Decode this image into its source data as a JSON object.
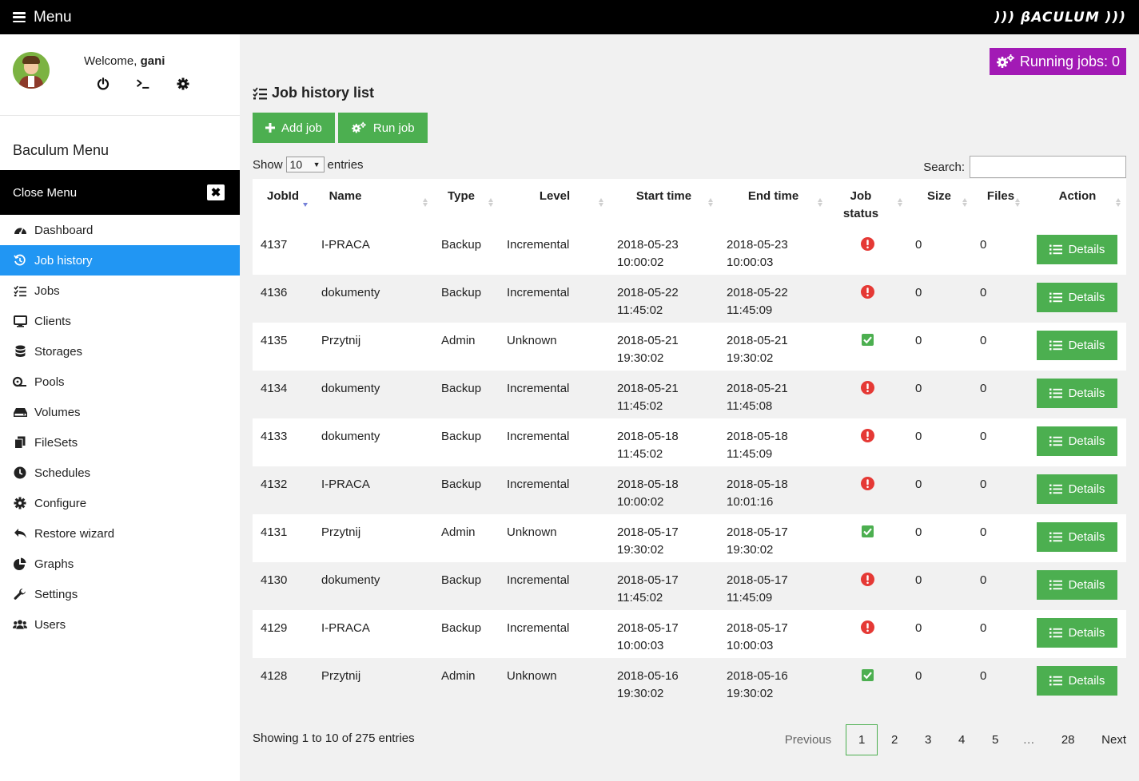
{
  "topbar": {
    "menu_label": "Menu",
    "brand": "))) βACULUM )))"
  },
  "user": {
    "welcome_prefix": "Welcome, ",
    "name": "gani"
  },
  "sidebar": {
    "title": "Baculum Menu",
    "close_label": "Close Menu",
    "items": [
      {
        "label": "Dashboard",
        "icon": "dashboard-icon"
      },
      {
        "label": "Job history",
        "icon": "history-icon",
        "active": true
      },
      {
        "label": "Jobs",
        "icon": "tasks-icon"
      },
      {
        "label": "Clients",
        "icon": "desktop-icon"
      },
      {
        "label": "Storages",
        "icon": "database-icon"
      },
      {
        "label": "Pools",
        "icon": "tape-icon"
      },
      {
        "label": "Volumes",
        "icon": "hdd-icon"
      },
      {
        "label": "FileSets",
        "icon": "copy-icon"
      },
      {
        "label": "Schedules",
        "icon": "clock-icon"
      },
      {
        "label": "Configure",
        "icon": "gear-icon"
      },
      {
        "label": "Restore wizard",
        "icon": "reply-icon"
      },
      {
        "label": "Graphs",
        "icon": "pie-chart-icon"
      },
      {
        "label": "Settings",
        "icon": "wrench-icon"
      },
      {
        "label": "Users",
        "icon": "users-icon"
      }
    ]
  },
  "main": {
    "running_jobs": "Running jobs: 0",
    "title": "Job history list",
    "add_job": "Add job",
    "run_job": "Run job",
    "show_label": "Show",
    "entries_value": "10",
    "entries_label": "entries",
    "search_label": "Search:",
    "search_value": ""
  },
  "table": {
    "columns": [
      "JobId",
      "Name",
      "Type",
      "Level",
      "Start time",
      "End time",
      "Job status",
      "Size",
      "Files",
      "Action"
    ],
    "details_label": "Details",
    "rows": [
      {
        "jobid": "4137",
        "name": "I-PRACA",
        "type": "Backup",
        "level": "Incremental",
        "start_date": "2018-05-23",
        "start_time": "10:00:02",
        "end_date": "2018-05-23",
        "end_time": "10:00:03",
        "status": "error",
        "size": "0",
        "files": "0"
      },
      {
        "jobid": "4136",
        "name": "dokumenty",
        "type": "Backup",
        "level": "Incremental",
        "start_date": "2018-05-22",
        "start_time": "11:45:02",
        "end_date": "2018-05-22",
        "end_time": "11:45:09",
        "status": "error",
        "size": "0",
        "files": "0"
      },
      {
        "jobid": "4135",
        "name": "Przytnij",
        "type": "Admin",
        "level": "Unknown",
        "start_date": "2018-05-21",
        "start_time": "19:30:02",
        "end_date": "2018-05-21",
        "end_time": "19:30:02",
        "status": "ok",
        "size": "0",
        "files": "0"
      },
      {
        "jobid": "4134",
        "name": "dokumenty",
        "type": "Backup",
        "level": "Incremental",
        "start_date": "2018-05-21",
        "start_time": "11:45:02",
        "end_date": "2018-05-21",
        "end_time": "11:45:08",
        "status": "error",
        "size": "0",
        "files": "0"
      },
      {
        "jobid": "4133",
        "name": "dokumenty",
        "type": "Backup",
        "level": "Incremental",
        "start_date": "2018-05-18",
        "start_time": "11:45:02",
        "end_date": "2018-05-18",
        "end_time": "11:45:09",
        "status": "error",
        "size": "0",
        "files": "0"
      },
      {
        "jobid": "4132",
        "name": "I-PRACA",
        "type": "Backup",
        "level": "Incremental",
        "start_date": "2018-05-18",
        "start_time": "10:00:02",
        "end_date": "2018-05-18",
        "end_time": "10:01:16",
        "status": "error",
        "size": "0",
        "files": "0"
      },
      {
        "jobid": "4131",
        "name": "Przytnij",
        "type": "Admin",
        "level": "Unknown",
        "start_date": "2018-05-17",
        "start_time": "19:30:02",
        "end_date": "2018-05-17",
        "end_time": "19:30:02",
        "status": "ok",
        "size": "0",
        "files": "0"
      },
      {
        "jobid": "4130",
        "name": "dokumenty",
        "type": "Backup",
        "level": "Incremental",
        "start_date": "2018-05-17",
        "start_time": "11:45:02",
        "end_date": "2018-05-17",
        "end_time": "11:45:09",
        "status": "error",
        "size": "0",
        "files": "0"
      },
      {
        "jobid": "4129",
        "name": "I-PRACA",
        "type": "Backup",
        "level": "Incremental",
        "start_date": "2018-05-17",
        "start_time": "10:00:03",
        "end_date": "2018-05-17",
        "end_time": "10:00:03",
        "status": "error",
        "size": "0",
        "files": "0"
      },
      {
        "jobid": "4128",
        "name": "Przytnij",
        "type": "Admin",
        "level": "Unknown",
        "start_date": "2018-05-16",
        "start_time": "19:30:02",
        "end_date": "2018-05-16",
        "end_time": "19:30:02",
        "status": "ok",
        "size": "0",
        "files": "0"
      }
    ]
  },
  "footer": {
    "info": "Showing 1 to 10 of 275 entries",
    "previous": "Previous",
    "next": "Next",
    "pages": [
      "1",
      "2",
      "3",
      "4",
      "5",
      "…",
      "28"
    ]
  },
  "colors": {
    "accent_blue": "#2196f3",
    "green": "#4caf50",
    "purple": "#a21ab5",
    "error_red": "#e53935"
  }
}
